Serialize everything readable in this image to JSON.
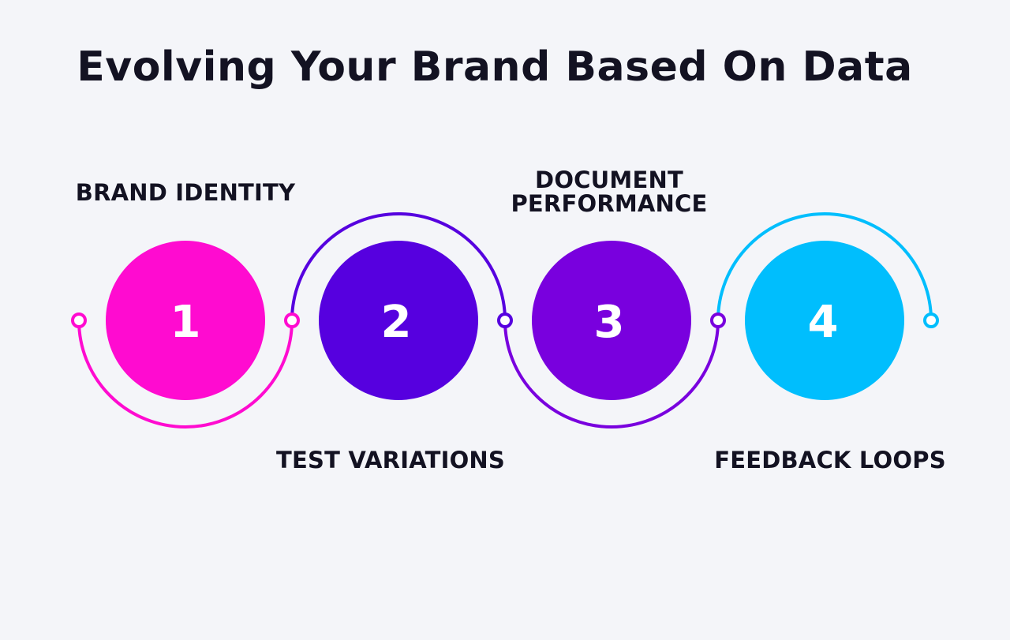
{
  "title": "Evolving Your Brand Based On Data",
  "steps": [
    {
      "number": "1",
      "label": "BRAND IDENTITY",
      "color": "#ff0bd0"
    },
    {
      "number": "2",
      "label": "TEST VARIATIONS",
      "color": "#5600df"
    },
    {
      "number": "3",
      "label_lines": [
        "DOCUMENT",
        "PERFORMANCE"
      ],
      "color": "#7900de"
    },
    {
      "number": "4",
      "label": "FEEDBACK LOOPS",
      "color": "#00befd"
    }
  ],
  "colors": {
    "background": "#f4f5f9",
    "text": "#131222",
    "number_text": "#ffffff"
  }
}
